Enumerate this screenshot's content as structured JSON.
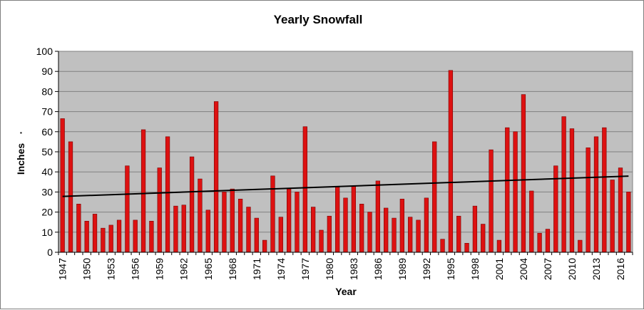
{
  "chart_data": {
    "type": "bar",
    "title": "Yearly Snowfall",
    "xlabel": "Year",
    "ylabel": "Inches",
    "ylabel_marker": "·",
    "ylim": [
      0,
      100
    ],
    "ytick_step": 10,
    "grid": true,
    "legend": "none",
    "x": [
      1947,
      1948,
      1949,
      1950,
      1951,
      1952,
      1953,
      1954,
      1955,
      1956,
      1957,
      1958,
      1959,
      1960,
      1961,
      1962,
      1963,
      1964,
      1965,
      1966,
      1967,
      1968,
      1969,
      1970,
      1971,
      1972,
      1973,
      1974,
      1975,
      1976,
      1977,
      1978,
      1979,
      1980,
      1981,
      1982,
      1983,
      1984,
      1985,
      1986,
      1987,
      1988,
      1989,
      1990,
      1991,
      1992,
      1993,
      1994,
      1995,
      1996,
      1997,
      1998,
      1999,
      2000,
      2001,
      2002,
      2003,
      2004,
      2005,
      2006,
      2007,
      2008,
      2009,
      2010,
      2011,
      2012,
      2013,
      2014,
      2015,
      2016,
      2017
    ],
    "x_tick_labels": [
      "1947",
      "1950",
      "1953",
      "1956",
      "1959",
      "1962",
      "1965",
      "1968",
      "1971",
      "1974",
      "1977",
      "1980",
      "1983",
      "1986",
      "1989",
      "1992",
      "1995",
      "1998",
      "2001",
      "2004",
      "2007",
      "2010",
      "2013",
      "2016"
    ],
    "values": [
      66.5,
      55,
      24,
      15.5,
      19,
      12,
      13.5,
      16,
      43,
      16,
      61,
      15.5,
      42,
      57.5,
      23,
      23.5,
      47.5,
      36.5,
      21,
      75,
      30,
      31.5,
      26.5,
      22.5,
      17,
      6,
      38,
      17.5,
      31.5,
      30,
      62.5,
      22.5,
      11,
      18,
      32.5,
      27,
      33,
      24,
      20,
      35.5,
      22,
      17,
      26.5,
      17.5,
      16,
      27,
      55,
      6.5,
      90.5,
      18,
      4.5,
      23,
      14,
      51,
      6,
      62,
      60,
      78.5,
      30.5,
      9.5,
      11.5,
      43,
      67.5,
      61.5,
      6,
      52,
      57.5,
      62,
      36,
      42,
      30
    ],
    "trendline": {
      "type": "linear",
      "start": 27.8,
      "end": 37.9
    },
    "colors": {
      "bar": "#dd1111",
      "bar_edge": "#7a0000",
      "plot_bg": "#c0c0c0",
      "grid": "#808080",
      "trend": "#000000"
    }
  }
}
